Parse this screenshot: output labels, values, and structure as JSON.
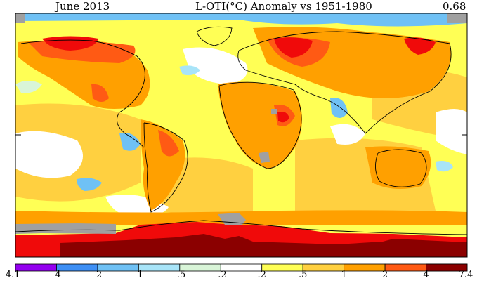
{
  "header": {
    "period": "June 2013",
    "title": "L-OTI(°C) Anomaly vs 1951-1980",
    "global_mean": "0.68"
  },
  "legend": {
    "bins": [
      {
        "from": "-4.1",
        "to": "-4",
        "color": "#9400f0"
      },
      {
        "from": "-4",
        "to": "-2",
        "color": "#3d8ff5"
      },
      {
        "from": "-2",
        "to": "-1",
        "color": "#6fc1f5"
      },
      {
        "from": "-1",
        "to": "-.5",
        "color": "#a8e4f8"
      },
      {
        "from": "-.5",
        "to": "-.2",
        "color": "#d9f5d8"
      },
      {
        "from": "-.2",
        "to": ".2",
        "color": "#ffffff"
      },
      {
        "from": ".2",
        "to": ".5",
        "color": "#ffff55"
      },
      {
        "from": ".5",
        "to": "1",
        "color": "#ffd040"
      },
      {
        "from": "1",
        "to": "2",
        "color": "#ffa000"
      },
      {
        "from": "2",
        "to": "4",
        "color": "#ff5a14"
      },
      {
        "from": "4",
        "to": "7.4",
        "color": "#f00a0a"
      },
      {
        "from": "7.4",
        "to": "7.4",
        "color": "#8b0000"
      }
    ],
    "tick_labels": [
      "-4.1",
      "-4",
      "-2",
      "-1",
      "-.5",
      "-.2",
      ".2",
      ".5",
      "1",
      "2",
      "4",
      "7.4"
    ]
  },
  "map": {
    "no_data_color": "#a0a0a0",
    "regions": [
      {
        "name": "arctic-siberia-hot",
        "color": "#f00a0a"
      },
      {
        "name": "antarctic-extreme",
        "color": "#8b0000"
      },
      {
        "name": "antarctic-hot",
        "color": "#f00a0a"
      },
      {
        "name": "pacific-cool",
        "color": "#a8e4f8"
      },
      {
        "name": "tropical-ocean-warm",
        "color": "#ffd040"
      },
      {
        "name": "land-warm",
        "color": "#ffa000"
      },
      {
        "name": "hotspots",
        "color": "#ff5a14"
      }
    ]
  }
}
